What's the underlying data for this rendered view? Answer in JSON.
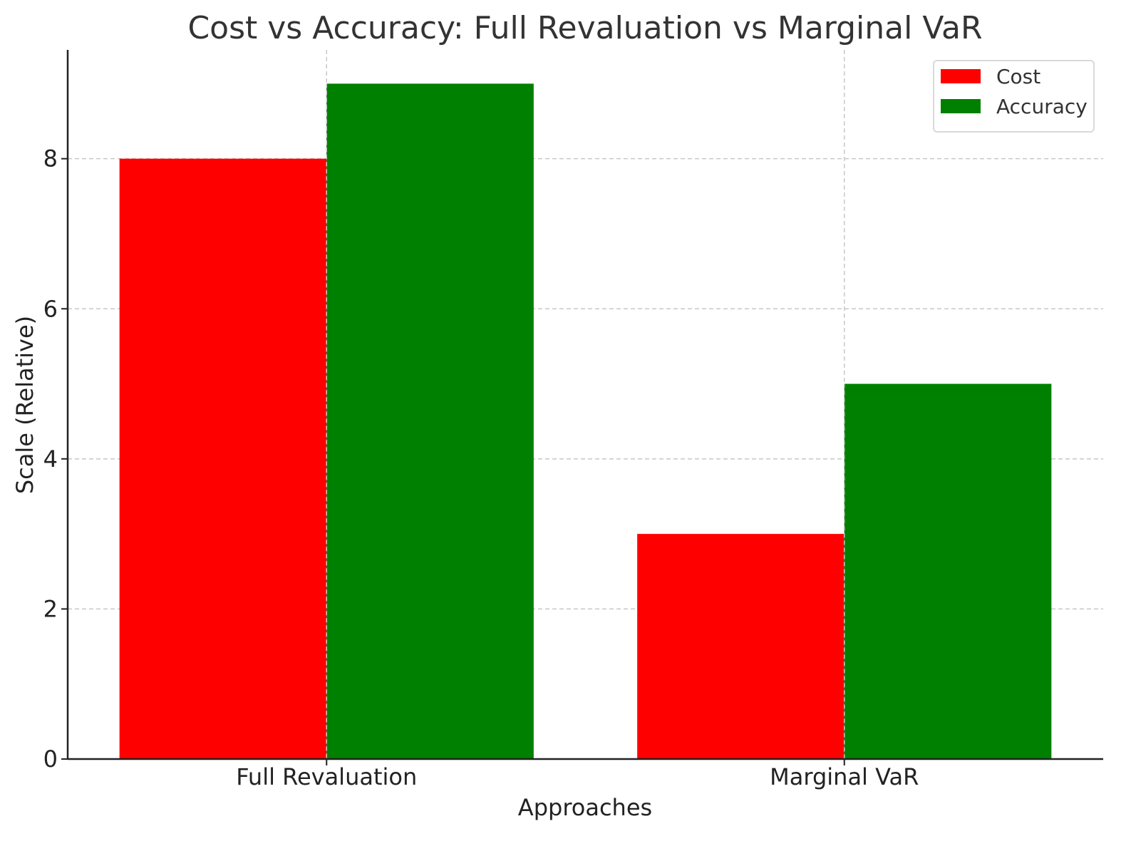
{
  "chart_data": {
    "type": "bar",
    "title": "Cost vs Accuracy: Full Revaluation vs Marginal VaR",
    "xlabel": "Approaches",
    "ylabel": "Scale (Relative)",
    "categories": [
      "Full Revaluation",
      "Marginal VaR"
    ],
    "series": [
      {
        "name": "Cost",
        "values": [
          8,
          3
        ],
        "color": "#ff0000"
      },
      {
        "name": "Accuracy",
        "values": [
          9,
          5
        ],
        "color": "#008000"
      }
    ],
    "ylim": [
      0,
      9.45
    ],
    "yticks": [
      0,
      2,
      4,
      6,
      8
    ],
    "grid": true,
    "legend_position": "top-right"
  }
}
